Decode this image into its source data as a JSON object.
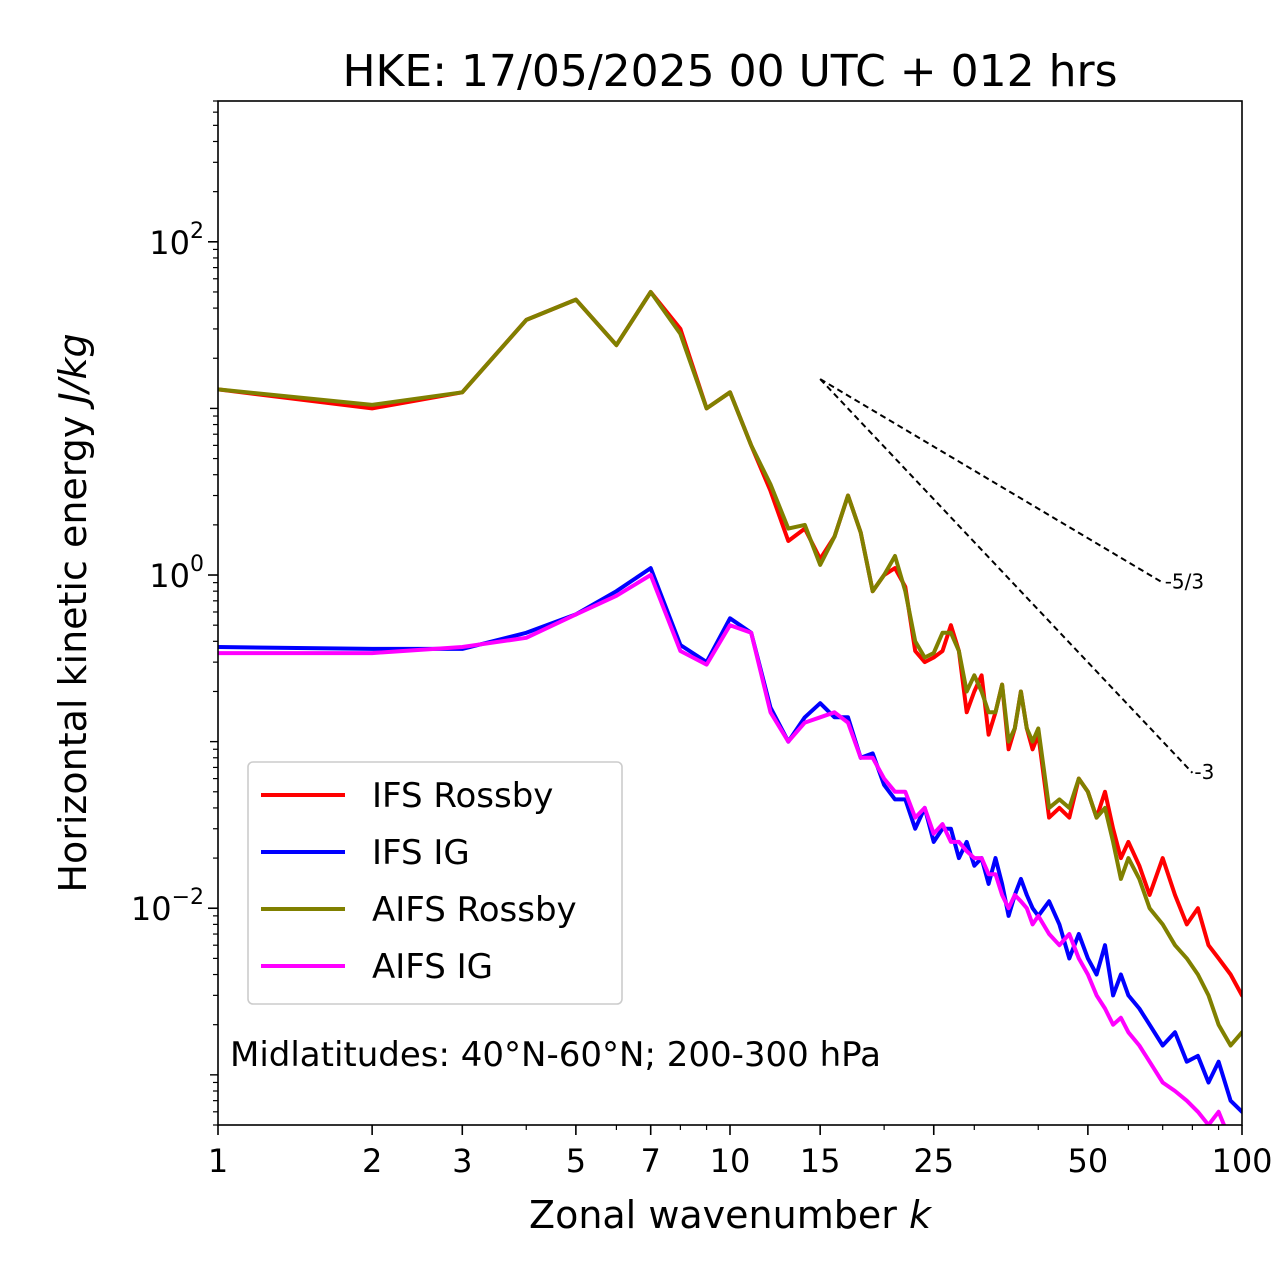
{
  "chart_data": {
    "type": "line",
    "title": "HKE: 17/05/2025 00 UTC + 012 hrs",
    "xlabel": "Zonal wavenumber ",
    "xlabel_italic": "k",
    "ylabel": "Horizontal kinetic energy ",
    "ylabel_italic": "J/kg",
    "xscale": "log",
    "yscale": "log",
    "xlim": [
      1,
      100
    ],
    "ylim": [
      0.0005,
      700
    ],
    "x_ticks": [
      {
        "value": 1,
        "label": "1"
      },
      {
        "value": 2,
        "label": "2"
      },
      {
        "value": 3,
        "label": "3"
      },
      {
        "value": 5,
        "label": "5"
      },
      {
        "value": 7,
        "label": "7"
      },
      {
        "value": 10,
        "label": "10"
      },
      {
        "value": 15,
        "label": "15"
      },
      {
        "value": 25,
        "label": "25"
      },
      {
        "value": 50,
        "label": "50"
      },
      {
        "value": 100,
        "label": "100"
      }
    ],
    "y_ticks": [
      {
        "value": 0.01,
        "base": "10",
        "exp": "−2"
      },
      {
        "value": 1,
        "base": "10",
        "exp": "0"
      },
      {
        "value": 100,
        "base": "10",
        "exp": "2"
      }
    ],
    "annotation": "Midlatitudes: 40°N-60°N; 200-300 hPa",
    "legend_position": "lower-left",
    "reference_slopes": [
      {
        "label": "-5/3",
        "x": [
          15,
          70
        ],
        "y": [
          15,
          0.9
        ]
      },
      {
        "label": "-3",
        "x": [
          15,
          80
        ],
        "y": [
          15,
          0.065
        ]
      }
    ],
    "series": [
      {
        "name": "IFS Rossby",
        "color": "#ff0000",
        "x": [
          1,
          2,
          3,
          4,
          5,
          6,
          7,
          8,
          9,
          10,
          11,
          12,
          13,
          14,
          15,
          16,
          17,
          18,
          19,
          20,
          21,
          22,
          23,
          24,
          25,
          26,
          27,
          28,
          29,
          30,
          31,
          32,
          33,
          34,
          35,
          36,
          37,
          38,
          39,
          40,
          42,
          44,
          46,
          48,
          50,
          52,
          54,
          56,
          58,
          60,
          63,
          66,
          70,
          74,
          78,
          82,
          86,
          90,
          95,
          100
        ],
        "y": [
          13,
          10,
          12.5,
          34,
          45,
          24,
          50,
          30,
          10,
          12.5,
          6,
          3.2,
          1.6,
          1.9,
          1.25,
          1.7,
          3.0,
          1.8,
          0.8,
          1.0,
          1.1,
          0.85,
          0.35,
          0.3,
          0.32,
          0.35,
          0.5,
          0.35,
          0.15,
          0.2,
          0.25,
          0.11,
          0.15,
          0.22,
          0.09,
          0.12,
          0.2,
          0.12,
          0.09,
          0.11,
          0.035,
          0.04,
          0.035,
          0.06,
          0.05,
          0.035,
          0.05,
          0.03,
          0.02,
          0.025,
          0.018,
          0.012,
          0.02,
          0.012,
          0.008,
          0.01,
          0.006,
          0.005,
          0.004,
          0.003
        ]
      },
      {
        "name": "IFS IG",
        "color": "#0000ff",
        "x": [
          1,
          2,
          3,
          4,
          5,
          6,
          7,
          8,
          9,
          10,
          11,
          12,
          13,
          14,
          15,
          16,
          17,
          18,
          19,
          20,
          21,
          22,
          23,
          24,
          25,
          26,
          27,
          28,
          29,
          30,
          31,
          32,
          33,
          34,
          35,
          36,
          37,
          38,
          39,
          40,
          42,
          44,
          46,
          48,
          50,
          52,
          54,
          56,
          58,
          60,
          63,
          66,
          70,
          74,
          78,
          82,
          86,
          90,
          95,
          100
        ],
        "y": [
          0.37,
          0.36,
          0.36,
          0.45,
          0.58,
          0.8,
          1.1,
          0.38,
          0.3,
          0.55,
          0.45,
          0.16,
          0.1,
          0.14,
          0.17,
          0.14,
          0.14,
          0.08,
          0.085,
          0.055,
          0.045,
          0.045,
          0.03,
          0.04,
          0.025,
          0.03,
          0.03,
          0.02,
          0.025,
          0.018,
          0.02,
          0.014,
          0.02,
          0.014,
          0.009,
          0.012,
          0.015,
          0.012,
          0.01,
          0.009,
          0.011,
          0.008,
          0.005,
          0.007,
          0.005,
          0.004,
          0.006,
          0.003,
          0.004,
          0.003,
          0.0025,
          0.002,
          0.0015,
          0.0018,
          0.0012,
          0.0013,
          0.0009,
          0.0012,
          0.0007,
          0.0006
        ]
      },
      {
        "name": "AIFS Rossby",
        "color": "#808000",
        "x": [
          1,
          2,
          3,
          4,
          5,
          6,
          7,
          8,
          9,
          10,
          11,
          12,
          13,
          14,
          15,
          16,
          17,
          18,
          19,
          20,
          21,
          22,
          23,
          24,
          25,
          26,
          27,
          28,
          29,
          30,
          31,
          32,
          33,
          34,
          35,
          36,
          37,
          38,
          39,
          40,
          42,
          44,
          46,
          48,
          50,
          52,
          54,
          56,
          58,
          60,
          63,
          66,
          70,
          74,
          78,
          82,
          86,
          90,
          95,
          100
        ],
        "y": [
          13,
          10.5,
          12.5,
          34,
          45,
          24,
          50,
          28,
          10,
          12.5,
          6,
          3.5,
          1.9,
          2.0,
          1.15,
          1.7,
          3.0,
          1.8,
          0.8,
          1.0,
          1.3,
          0.8,
          0.4,
          0.32,
          0.34,
          0.45,
          0.45,
          0.35,
          0.2,
          0.25,
          0.2,
          0.15,
          0.15,
          0.22,
          0.1,
          0.12,
          0.2,
          0.12,
          0.1,
          0.12,
          0.04,
          0.045,
          0.04,
          0.06,
          0.05,
          0.035,
          0.04,
          0.025,
          0.015,
          0.02,
          0.015,
          0.01,
          0.008,
          0.006,
          0.005,
          0.004,
          0.003,
          0.002,
          0.0015,
          0.0018
        ]
      },
      {
        "name": "AIFS IG",
        "color": "#ff00ff",
        "x": [
          1,
          2,
          3,
          4,
          5,
          6,
          7,
          8,
          9,
          10,
          11,
          12,
          13,
          14,
          15,
          16,
          17,
          18,
          19,
          20,
          21,
          22,
          23,
          24,
          25,
          26,
          27,
          28,
          29,
          30,
          31,
          32,
          33,
          34,
          35,
          36,
          37,
          38,
          39,
          40,
          42,
          44,
          46,
          48,
          50,
          52,
          54,
          56,
          58,
          60,
          63,
          66,
          70,
          74,
          78,
          82,
          86,
          90,
          95,
          100
        ],
        "y": [
          0.34,
          0.34,
          0.37,
          0.42,
          0.58,
          0.75,
          1.0,
          0.35,
          0.29,
          0.5,
          0.45,
          0.15,
          0.1,
          0.13,
          0.14,
          0.15,
          0.13,
          0.08,
          0.08,
          0.06,
          0.05,
          0.05,
          0.035,
          0.04,
          0.028,
          0.032,
          0.025,
          0.025,
          0.022,
          0.02,
          0.02,
          0.016,
          0.016,
          0.012,
          0.01,
          0.012,
          0.011,
          0.01,
          0.008,
          0.009,
          0.007,
          0.006,
          0.007,
          0.005,
          0.004,
          0.003,
          0.0025,
          0.002,
          0.0022,
          0.0018,
          0.0015,
          0.0012,
          0.0009,
          0.0008,
          0.0007,
          0.0006,
          0.0005,
          0.0006,
          0.0004,
          0.0003
        ]
      }
    ]
  }
}
